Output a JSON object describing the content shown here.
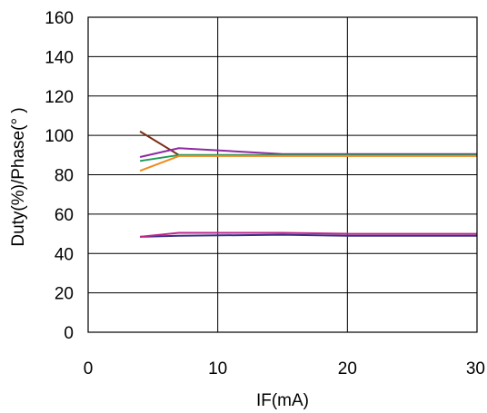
{
  "chart_data": {
    "type": "line",
    "title": "",
    "xlabel": "IF(mA)",
    "ylabel": "Duty(%)/Phase(° )",
    "xlim": [
      0,
      30
    ],
    "ylim": [
      0,
      160
    ],
    "x_ticks": [
      0,
      10,
      20,
      30
    ],
    "y_ticks": [
      0,
      20,
      40,
      60,
      80,
      100,
      120,
      140,
      160
    ],
    "grid": true,
    "legend": "none",
    "series": [
      {
        "color": "#7b2d16",
        "x": [
          4,
          7,
          15,
          20,
          30
        ],
        "y": [
          102,
          90,
          90,
          90,
          90
        ]
      },
      {
        "color": "#8e2aa0",
        "x": [
          4,
          7,
          15,
          20,
          30
        ],
        "y": [
          89,
          93.5,
          90.5,
          90.5,
          90.5
        ]
      },
      {
        "color": "#1f9a57",
        "x": [
          4,
          7,
          15,
          20,
          30
        ],
        "y": [
          87,
          90,
          90,
          90,
          90
        ]
      },
      {
        "color": "#f08a1e",
        "x": [
          4,
          7,
          15,
          20,
          30
        ],
        "y": [
          82,
          89.5,
          89.5,
          89.5,
          89.5
        ]
      },
      {
        "color": "#3a2f86",
        "x": [
          4,
          7,
          15,
          20,
          30
        ],
        "y": [
          48.5,
          49,
          49.5,
          49,
          49
        ]
      },
      {
        "color": "#c0268c",
        "x": [
          4,
          7,
          15,
          20,
          30
        ],
        "y": [
          48.5,
          50.5,
          50.5,
          50,
          50
        ]
      }
    ]
  }
}
